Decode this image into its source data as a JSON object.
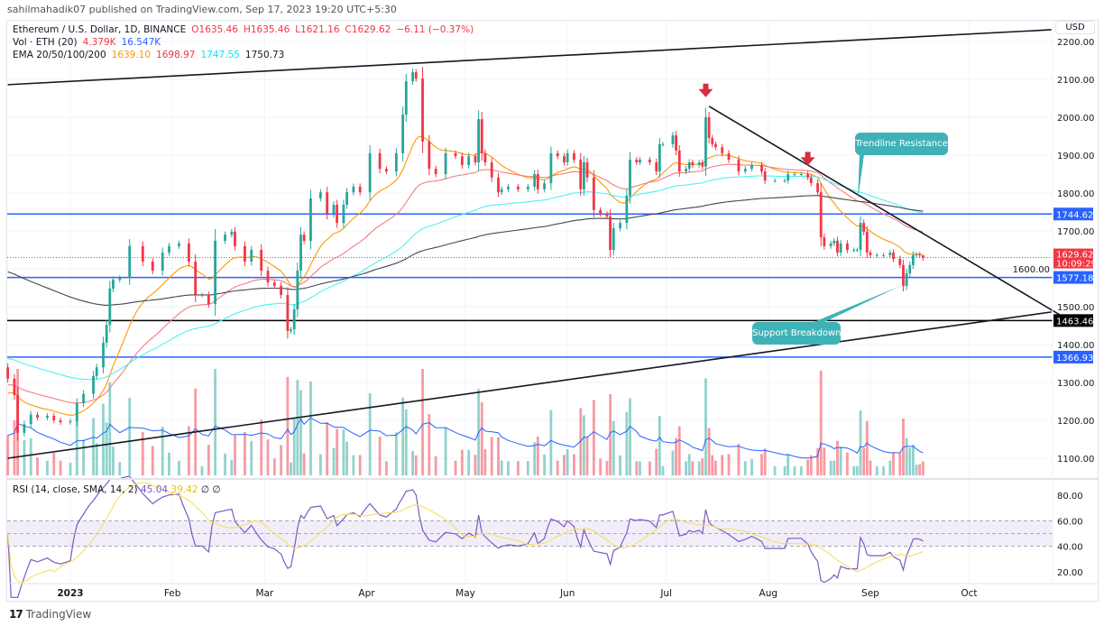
{
  "header": {
    "published": "sahilmahadik07 published on TradingView.com, Sep 17, 2023 19:20 UTC+5:30"
  },
  "legend": {
    "symbol": "Ethereum / U.S. Dollar, 1D, BINANCE",
    "open": "O1635.46",
    "high": "H1635.46",
    "low": "L1621.16",
    "close": "C1629.62",
    "change": "−6.11 (−0.37%)",
    "vol_label": "Vol · ETH (20)",
    "vol_value": "4.379K",
    "vol_ma": "16.547K",
    "ema_label": "EMA 20/50/100/200",
    "ema20": "1639.10",
    "ema50": "1698.97",
    "ema100": "1747.55",
    "ema200": "1750.73"
  },
  "rsi_legend": {
    "label": "RSI (14, close, SMA, 14, 2)",
    "rsi": "45.04",
    "sma": "39.42",
    "extra1": "∅",
    "extra2": "∅"
  },
  "currency_button": "USD",
  "current_price": {
    "value": "1629.62",
    "countdown": "10:09:29"
  },
  "callouts": {
    "resistance": "Trendline Resistance",
    "support": "Support Breakdown"
  },
  "brand": "TradingView",
  "colors": {
    "up": "#26a69a",
    "down": "#f23645",
    "ema20": "#ff9800",
    "ema50": "#f77c80",
    "ema100": "#4ef2f2",
    "ema200": "#434651",
    "level_blue": "#2962ff",
    "rsi": "#7e57c2",
    "rsi_sma": "#f5e05b",
    "callout": "#3fb2b8",
    "volume_ma": "#2962ff"
  },
  "chart_data": {
    "type": "candlestick",
    "title": "Ethereum / U.S. Dollar, 1D, BINANCE",
    "y_ticks": [
      1100,
      1200,
      1300,
      1400,
      1500,
      1600,
      1700,
      1800,
      1900,
      2000,
      2100,
      2200
    ],
    "y_tick_labels": [
      "1100.00",
      "1200.00",
      "1300.00",
      "1400.00",
      "1500.00",
      "1600.00",
      "1700.00",
      "1800.00",
      "1900.00",
      "2000.00",
      "2100.00",
      "2200.00"
    ],
    "x_ticks": [
      {
        "date": "2023-01-01",
        "label": "2023"
      },
      {
        "date": "2023-02-01",
        "label": "Feb"
      },
      {
        "date": "2023-03-01",
        "label": "Mar"
      },
      {
        "date": "2023-04-01",
        "label": "Apr"
      },
      {
        "date": "2023-05-01",
        "label": "May"
      },
      {
        "date": "2023-06-01",
        "label": "Jun"
      },
      {
        "date": "2023-07-01",
        "label": "Jul"
      },
      {
        "date": "2023-08-01",
        "label": "Aug"
      },
      {
        "date": "2023-09-01",
        "label": "Sep"
      },
      {
        "date": "2023-10-01",
        "label": "Oct"
      }
    ],
    "closes": [
      [
        "2022-12-13",
        1310
      ],
      [
        "2022-12-15",
        1267
      ],
      [
        "2022-12-16",
        1167
      ],
      [
        "2022-12-18",
        1190
      ],
      [
        "2022-12-20",
        1215
      ],
      [
        "2022-12-22",
        1207
      ],
      [
        "2022-12-25",
        1212
      ],
      [
        "2022-12-27",
        1200
      ],
      [
        "2022-12-29",
        1195
      ],
      [
        "2023-01-01",
        1198
      ],
      [
        "2023-01-03",
        1245
      ],
      [
        "2023-01-05",
        1270
      ],
      [
        "2023-01-08",
        1317
      ],
      [
        "2023-01-09",
        1340
      ],
      [
        "2023-01-11",
        1405
      ],
      [
        "2023-01-12",
        1452
      ],
      [
        "2023-01-13",
        1548
      ],
      [
        "2023-01-14",
        1571
      ],
      [
        "2023-01-16",
        1576
      ],
      [
        "2023-01-19",
        1660
      ],
      [
        "2023-01-23",
        1619
      ],
      [
        "2023-01-26",
        1595
      ],
      [
        "2023-01-29",
        1643
      ],
      [
        "2023-01-31",
        1660
      ],
      [
        "2023-02-03",
        1667
      ],
      [
        "2023-02-06",
        1619
      ],
      [
        "2023-02-08",
        1531
      ],
      [
        "2023-02-10",
        1531
      ],
      [
        "2023-02-12",
        1507
      ],
      [
        "2023-02-14",
        1674
      ],
      [
        "2023-02-17",
        1690
      ],
      [
        "2023-02-19",
        1698
      ],
      [
        "2023-02-20",
        1660
      ],
      [
        "2023-02-23",
        1619
      ],
      [
        "2023-02-25",
        1650
      ],
      [
        "2023-02-28",
        1595
      ],
      [
        "2023-03-02",
        1564
      ],
      [
        "2023-03-04",
        1555
      ],
      [
        "2023-03-06",
        1531
      ],
      [
        "2023-03-08",
        1436
      ],
      [
        "2023-03-09",
        1440
      ],
      [
        "2023-03-10",
        1493
      ],
      [
        "2023-03-11",
        1595
      ],
      [
        "2023-03-12",
        1690
      ],
      [
        "2023-03-13",
        1674
      ],
      [
        "2023-03-15",
        1786
      ],
      [
        "2023-03-18",
        1802
      ],
      [
        "2023-03-20",
        1745
      ],
      [
        "2023-03-22",
        1769
      ],
      [
        "2023-03-23",
        1721
      ],
      [
        "2023-03-25",
        1769
      ],
      [
        "2023-03-26",
        1802
      ],
      [
        "2023-03-28",
        1817
      ],
      [
        "2023-03-30",
        1802
      ],
      [
        "2023-04-02",
        1905
      ],
      [
        "2023-04-05",
        1864
      ],
      [
        "2023-04-07",
        1857
      ],
      [
        "2023-04-10",
        1905
      ],
      [
        "2023-04-12",
        2007
      ],
      [
        "2023-04-13",
        2095
      ],
      [
        "2023-04-15",
        2119
      ],
      [
        "2023-04-16",
        2102
      ],
      [
        "2023-04-18",
        1936
      ],
      [
        "2023-04-20",
        1864
      ],
      [
        "2023-04-22",
        1850
      ],
      [
        "2023-04-25",
        1905
      ],
      [
        "2023-04-28",
        1897
      ],
      [
        "2023-04-30",
        1874
      ],
      [
        "2023-05-02",
        1897
      ],
      [
        "2023-05-04",
        1881
      ],
      [
        "2023-05-05",
        1995
      ],
      [
        "2023-05-06",
        1905
      ],
      [
        "2023-05-07",
        1881
      ],
      [
        "2023-05-09",
        1841
      ],
      [
        "2023-05-11",
        1802
      ],
      [
        "2023-05-12",
        1810
      ],
      [
        "2023-05-14",
        1817
      ],
      [
        "2023-05-17",
        1810
      ],
      [
        "2023-05-20",
        1817
      ],
      [
        "2023-05-22",
        1850
      ],
      [
        "2023-05-23",
        1810
      ],
      [
        "2023-05-25",
        1826
      ],
      [
        "2023-05-27",
        1905
      ],
      [
        "2023-05-29",
        1897
      ],
      [
        "2023-05-31",
        1881
      ],
      [
        "2023-06-01",
        1905
      ],
      [
        "2023-06-03",
        1888
      ],
      [
        "2023-06-05",
        1810
      ],
      [
        "2023-06-06",
        1881
      ],
      [
        "2023-06-07",
        1841
      ],
      [
        "2023-06-09",
        1755
      ],
      [
        "2023-06-11",
        1745
      ],
      [
        "2023-06-13",
        1738
      ],
      [
        "2023-06-14",
        1650
      ],
      [
        "2023-06-15",
        1707
      ],
      [
        "2023-06-17",
        1721
      ],
      [
        "2023-06-19",
        1793
      ],
      [
        "2023-06-20",
        1888
      ],
      [
        "2023-06-22",
        1881
      ],
      [
        "2023-06-23",
        1888
      ],
      [
        "2023-06-26",
        1881
      ],
      [
        "2023-06-28",
        1857
      ],
      [
        "2023-06-29",
        1929
      ],
      [
        "2023-06-30",
        1929
      ],
      [
        "2023-07-03",
        1952
      ],
      [
        "2023-07-04",
        1912
      ],
      [
        "2023-07-05",
        1857
      ],
      [
        "2023-07-07",
        1864
      ],
      [
        "2023-07-08",
        1881
      ],
      [
        "2023-07-09",
        1874
      ],
      [
        "2023-07-11",
        1881
      ],
      [
        "2023-07-12",
        1870
      ],
      [
        "2023-07-13",
        2000
      ],
      [
        "2023-07-14",
        1945
      ],
      [
        "2023-07-15",
        1929
      ],
      [
        "2023-07-16",
        1921
      ],
      [
        "2023-07-18",
        1905
      ],
      [
        "2023-07-20",
        1888
      ],
      [
        "2023-07-23",
        1857
      ],
      [
        "2023-07-25",
        1864
      ],
      [
        "2023-07-27",
        1874
      ],
      [
        "2023-07-30",
        1857
      ],
      [
        "2023-07-31",
        1833
      ],
      [
        "2023-08-03",
        1833
      ],
      [
        "2023-08-06",
        1833
      ],
      [
        "2023-08-07",
        1850
      ],
      [
        "2023-08-09",
        1850
      ],
      [
        "2023-08-11",
        1850
      ],
      [
        "2023-08-13",
        1841
      ],
      [
        "2023-08-14",
        1826
      ],
      [
        "2023-08-16",
        1802
      ],
      [
        "2023-08-17",
        1683
      ],
      [
        "2023-08-18",
        1660
      ],
      [
        "2023-08-20",
        1667
      ],
      [
        "2023-08-21",
        1674
      ],
      [
        "2023-08-22",
        1643
      ],
      [
        "2023-08-23",
        1667
      ],
      [
        "2023-08-25",
        1650
      ],
      [
        "2023-08-27",
        1650
      ],
      [
        "2023-08-28",
        1650
      ],
      [
        "2023-08-29",
        1721
      ],
      [
        "2023-08-30",
        1698
      ],
      [
        "2023-08-31",
        1643
      ],
      [
        "2023-09-01",
        1636
      ],
      [
        "2023-09-03",
        1636
      ],
      [
        "2023-09-05",
        1636
      ],
      [
        "2023-09-07",
        1643
      ],
      [
        "2023-09-08",
        1626
      ],
      [
        "2023-09-10",
        1610
      ],
      [
        "2023-09-11",
        1555
      ],
      [
        "2023-09-12",
        1588
      ],
      [
        "2023-09-13",
        1610
      ],
      [
        "2023-09-14",
        1636
      ],
      [
        "2023-09-15",
        1638
      ],
      [
        "2023-09-16",
        1635.46
      ],
      [
        "2023-09-17",
        1629.62
      ]
    ],
    "last_candle": {
      "date": "2023-09-17",
      "open": 1635.46,
      "high": 1635.46,
      "low": 1621.16,
      "close": 1629.62
    },
    "horizontal_levels": [
      {
        "price": 1744.62,
        "label": "1744.62",
        "color": "#2962ff"
      },
      {
        "price": 1577.18,
        "label": "1577.18",
        "color": "#2962ff"
      },
      {
        "price": 1463.46,
        "label": "1463.46",
        "color": "#000000"
      },
      {
        "price": 1366.93,
        "label": "1366.93",
        "color": "#2962ff"
      }
    ],
    "trendlines": [
      {
        "from": [
          "2022-12-13",
          2086
        ],
        "to": [
          "2023-10-26",
          2231
        ]
      },
      {
        "from": [
          "2022-12-13",
          1100
        ],
        "to": [
          "2023-10-26",
          1486
        ]
      },
      {
        "from": [
          "2023-07-14",
          2029
        ],
        "to": [
          "2023-10-30",
          1471
        ]
      }
    ],
    "arrows": [
      {
        "date": "2023-07-13",
        "price": 2060
      },
      {
        "date": "2023-08-13",
        "price": 1880
      }
    ],
    "rsi": {
      "y_ticks": [
        20,
        40,
        60,
        80
      ],
      "y_tick_labels": [
        "20.00",
        "40.00",
        "60.00",
        "80.00"
      ],
      "band": [
        40,
        60
      ],
      "last": 45.04,
      "sma_last": 39.42
    }
  }
}
